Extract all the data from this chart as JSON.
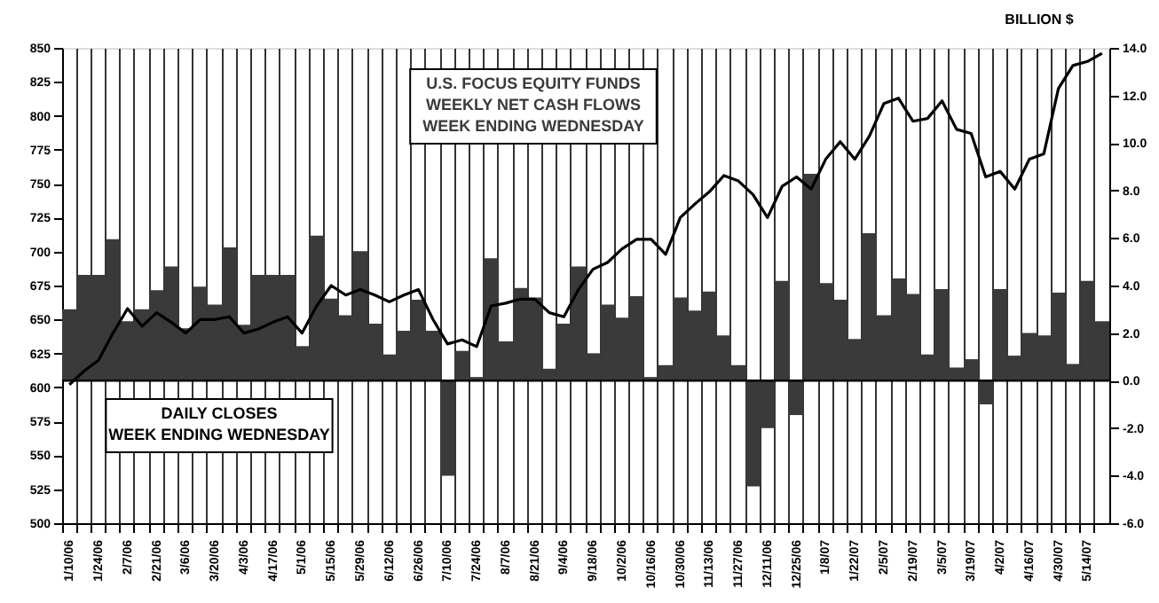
{
  "chart_data": {
    "type": "bar",
    "y2label": "BILLION $",
    "categories": [
      "1/10/06",
      null,
      "1/24/06",
      null,
      "2/7/06",
      null,
      "2/21/06",
      null,
      "3/6/06",
      null,
      "3/20/06",
      null,
      "4/3/06",
      null,
      "4/17/06",
      null,
      "5/1/06",
      null,
      "5/15/06",
      null,
      "5/29/06",
      null,
      "6/12/06",
      null,
      "6/26/06",
      null,
      "7/10/06",
      null,
      "7/24/06",
      null,
      "8/7/06",
      null,
      "8/21/06",
      null,
      "9/4/06",
      null,
      "9/18/06",
      null,
      "10/2/06",
      null,
      "10/16/06",
      null,
      "10/30/06",
      null,
      "11/13/06",
      null,
      "11/27/06",
      null,
      "12/11/06",
      null,
      "12/25/06",
      null,
      "1/8/07",
      null,
      "1/22/07",
      null,
      "2/5/07",
      null,
      "2/19/07",
      null,
      "3/5/07",
      null,
      "3/19/07",
      null,
      "4/2/07",
      null,
      "4/16/07",
      null,
      "4/30/07",
      null,
      "5/14/07",
      null
    ],
    "series": [
      {
        "axis": "y2",
        "name": "U.S. FOCUS EQUITY FUNDS\nWEEKLY NET CASH FLOWS\nWEEK ENDING WEDNESDAY",
        "color": "#3a3a3a",
        "values": [
          3.0,
          4.45,
          4.45,
          5.95,
          2.5,
          3.0,
          3.8,
          4.8,
          2.2,
          3.95,
          3.2,
          5.6,
          2.35,
          4.45,
          4.45,
          4.45,
          1.45,
          6.1,
          3.45,
          2.75,
          5.45,
          2.4,
          1.1,
          2.1,
          3.4,
          2.1,
          -4.0,
          1.25,
          0.15,
          5.15,
          1.65,
          3.9,
          3.5,
          0.5,
          2.4,
          4.8,
          1.15,
          3.2,
          2.65,
          3.55,
          0.15,
          0.65,
          3.5,
          2.95,
          3.75,
          1.9,
          0.65,
          -4.45,
          -2.0,
          4.2,
          -1.45,
          8.7,
          4.1,
          3.4,
          1.75,
          6.2,
          2.75,
          4.3,
          3.65,
          1.1,
          3.85,
          0.55,
          0.9,
          -1.0,
          3.85,
          1.05,
          2.0,
          1.9,
          3.7,
          0.7,
          4.2,
          2.5
        ]
      },
      {
        "type": "line",
        "name": "DAILY CLOSES\nWEEK ENDING WEDNESDAY",
        "color": "#000000",
        "values": [
          602,
          612,
          620,
          640,
          658,
          645,
          655,
          648,
          640,
          650,
          650,
          652,
          640,
          643,
          648,
          652,
          640,
          660,
          675,
          668,
          672,
          668,
          663,
          668,
          672,
          650,
          632,
          635,
          630,
          660,
          662,
          665,
          665,
          655,
          652,
          672,
          687,
          692,
          702,
          709,
          709,
          698,
          725,
          735,
          744,
          756,
          752,
          742,
          725,
          748,
          755,
          746,
          768,
          781,
          768,
          785,
          809,
          813,
          796,
          798,
          811,
          790,
          787,
          755,
          759,
          746,
          768,
          772,
          820,
          837,
          840,
          846
        ]
      }
    ],
    "ylim": [
      500,
      850
    ],
    "yticks": [
      500,
      525,
      550,
      575,
      600,
      625,
      650,
      675,
      700,
      725,
      750,
      775,
      800,
      825,
      850
    ],
    "y2lim": [
      -6,
      14
    ],
    "y2ticks": [
      {
        "value": -6,
        "label": "-6.0"
      },
      {
        "value": -4,
        "label": "-4.0"
      },
      {
        "value": -2,
        "label": "-2.0"
      },
      {
        "value": 0,
        "label": "0.0"
      },
      {
        "value": 2,
        "label": "2.0"
      },
      {
        "value": 4,
        "label": "4.0"
      },
      {
        "value": 6,
        "label": "6.0"
      },
      {
        "value": 8,
        "label": "8.0"
      },
      {
        "value": 10,
        "label": "10.0"
      },
      {
        "value": 12,
        "label": "12.0"
      },
      {
        "value": 14,
        "label": "14.0"
      }
    ],
    "ref_lines": [
      {
        "axis": "y2",
        "value": 0,
        "color": "#000000"
      }
    ],
    "grid": "x"
  }
}
